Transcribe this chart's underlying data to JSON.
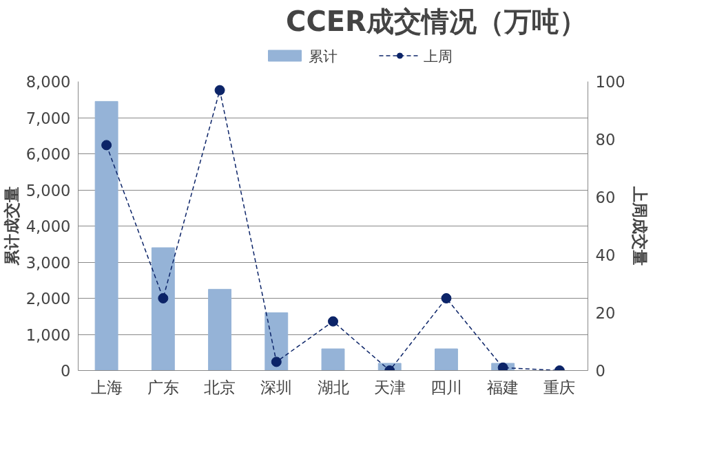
{
  "chart_data": {
    "type": "bar",
    "title": "CCER成交情况（万吨）",
    "ylabel": "累计成交量",
    "y2label": "上周成交量",
    "categories": [
      "上海",
      "广东",
      "北京",
      "深圳",
      "湖北",
      "天津",
      "四川",
      "福建",
      "重庆"
    ],
    "series": [
      {
        "name": "累计",
        "color": "#95b3d7",
        "values": [
          7450,
          3400,
          2250,
          1600,
          600,
          200,
          600,
          200,
          0
        ]
      },
      {
        "name": "上周",
        "type": "line",
        "axis": "y2",
        "color": "#0c2468",
        "marker": "circle",
        "line_style": "dashed",
        "values": [
          78,
          25,
          97,
          3,
          17,
          0,
          25,
          1,
          0
        ]
      }
    ],
    "ylim": [
      0,
      8000
    ],
    "yticks": [
      0,
      {
        "value": 1000,
        "label": "1,000"
      },
      {
        "value": 2000,
        "label": "2,000"
      },
      {
        "value": 3000,
        "label": "3,000"
      },
      {
        "value": 4000,
        "label": "4,000"
      },
      {
        "value": 5000,
        "label": "5,000"
      },
      {
        "value": 6000,
        "label": "6,000"
      },
      {
        "value": 7000,
        "label": "7,000"
      },
      {
        "value": 8000,
        "label": "8,000"
      }
    ],
    "y2lim": [
      0,
      100
    ],
    "y2ticks": [
      0,
      20,
      40,
      60,
      80,
      100
    ],
    "grid": "y",
    "legend": "top"
  }
}
